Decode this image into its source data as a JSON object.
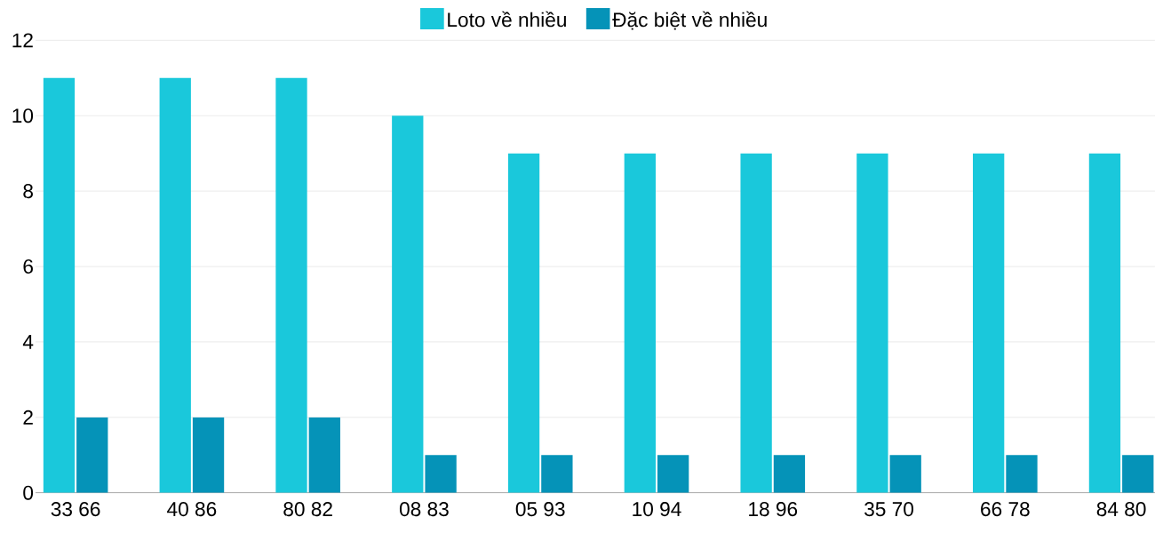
{
  "chart_data": {
    "type": "bar",
    "categories": [
      "33 66",
      "40 86",
      "80 82",
      "08 83",
      "05 93",
      "10 94",
      "18 96",
      "35 70",
      "66 78",
      "84 80"
    ],
    "series": [
      {
        "name": "Loto về nhiều",
        "color": "#1ac8db",
        "values": [
          11,
          11,
          11,
          10,
          9,
          9,
          9,
          9,
          9,
          9
        ]
      },
      {
        "name": "Đặc biệt về nhiều",
        "color": "#0593b8",
        "values": [
          2,
          2,
          2,
          1,
          1,
          1,
          1,
          1,
          1,
          1
        ]
      }
    ],
    "ylim": [
      0,
      12
    ],
    "yticks": [
      0,
      2,
      4,
      6,
      8,
      10,
      12
    ],
    "grid": "y",
    "legend": "top"
  }
}
